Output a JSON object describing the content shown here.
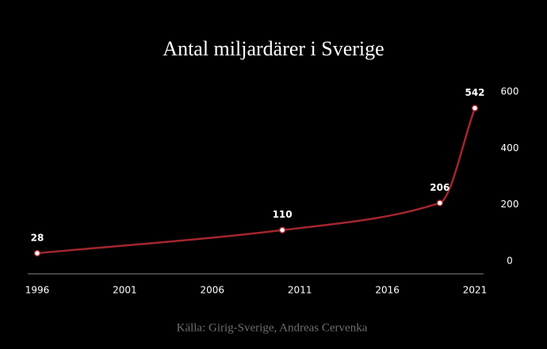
{
  "chart_data": {
    "type": "line",
    "title": "Antal miljardärer i Sverige",
    "source": "Källa: Girig-Sverige, Andreas Cervenka",
    "x": [
      1996,
      2010,
      2019,
      2021
    ],
    "values": [
      28,
      110,
      206,
      542
    ],
    "color": "#a3262e",
    "xlim": [
      1996,
      2021
    ],
    "xticks": [
      1996,
      2001,
      2006,
      2011,
      2016,
      2021
    ],
    "ylim": [
      -45,
      600
    ],
    "yticks": [
      0,
      200,
      400,
      600
    ],
    "y_axis_side": "right"
  }
}
